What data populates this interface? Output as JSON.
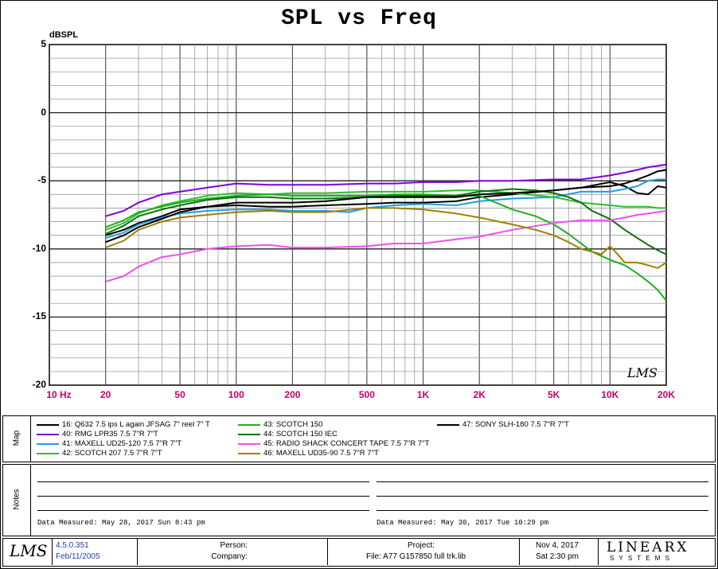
{
  "chart_data": {
    "type": "line",
    "title": "SPL vs Freq",
    "ylabel": "dBSPL",
    "xscale": "log",
    "xlim": [
      10,
      20000
    ],
    "ylim": [
      -20,
      5
    ],
    "yticks": [
      "5",
      "0",
      "-5",
      "-10",
      "-15",
      "-20"
    ],
    "xticks": [
      {
        "v": 10,
        "label": "10 Hz"
      },
      {
        "v": 20,
        "label": "20"
      },
      {
        "v": 50,
        "label": "50"
      },
      {
        "v": 100,
        "label": "100"
      },
      {
        "v": 200,
        "label": "200"
      },
      {
        "v": 500,
        "label": "500"
      },
      {
        "v": 1000,
        "label": "1K"
      },
      {
        "v": 2000,
        "label": "2K"
      },
      {
        "v": 5000,
        "label": "5K"
      },
      {
        "v": 10000,
        "label": "10K"
      },
      {
        "v": 20000,
        "label": "20K"
      }
    ],
    "watermark": "LMS",
    "grid": true,
    "series": [
      {
        "name": "16: Q632  7.5 ips   L again  JFSAG  7\" reel 7\" T",
        "color": "#000000",
        "x": [
          20,
          25,
          30,
          40,
          50,
          70,
          100,
          150,
          200,
          300,
          500,
          700,
          1000,
          1500,
          2000,
          3000,
          5000,
          7000,
          10000,
          12000,
          14000,
          16000,
          18000,
          20000
        ],
        "y": [
          -9.0,
          -8.6,
          -8.1,
          -7.6,
          -7.1,
          -6.9,
          -6.8,
          -6.9,
          -6.9,
          -6.8,
          -6.7,
          -6.6,
          -6.6,
          -6.5,
          -6.2,
          -6.0,
          -5.7,
          -5.5,
          -5.1,
          -5.4,
          -5.9,
          -6.0,
          -5.4,
          -5.5
        ]
      },
      {
        "name": "40: RMG LPR35  7.5 7\"R 7\"T",
        "color": "#7f00df",
        "x": [
          20,
          25,
          30,
          40,
          50,
          70,
          100,
          150,
          200,
          300,
          500,
          700,
          1000,
          1500,
          2000,
          3000,
          5000,
          7000,
          10000,
          12000,
          14000,
          16000,
          18000,
          20000
        ],
        "y": [
          -7.6,
          -7.2,
          -6.6,
          -6.0,
          -5.8,
          -5.5,
          -5.2,
          -5.3,
          -5.3,
          -5.3,
          -5.2,
          -5.2,
          -5.1,
          -5.1,
          -5.0,
          -5.0,
          -4.9,
          -4.9,
          -4.6,
          -4.4,
          -4.2,
          -4.0,
          -3.9,
          -3.8
        ]
      },
      {
        "name": "41: MAXELL UD25-120  7.5 7\"R 7\"T",
        "color": "#1f9fdf",
        "x": [
          20,
          25,
          30,
          40,
          50,
          70,
          100,
          150,
          200,
          300,
          400,
          500,
          700,
          1000,
          1500,
          2000,
          3000,
          5000,
          7000,
          10000,
          12000,
          14000,
          16000,
          18000,
          20000
        ],
        "y": [
          -9.2,
          -8.8,
          -8.2,
          -7.7,
          -7.4,
          -7.2,
          -7.1,
          -7.1,
          -7.2,
          -7.2,
          -7.3,
          -7.0,
          -6.8,
          -6.7,
          -6.8,
          -6.5,
          -6.3,
          -6.2,
          -5.8,
          -5.8,
          -5.6,
          -5.4,
          -5.0,
          -4.9,
          -4.9
        ]
      },
      {
        "name": "42: SCOTCH 207  7.5 7\"R 7\"T",
        "color": "#2fbf2f",
        "x": [
          20,
          25,
          30,
          40,
          50,
          70,
          100,
          150,
          200,
          300,
          500,
          700,
          1000,
          1500,
          2000,
          3000,
          5000,
          7000,
          10000,
          12000,
          14000,
          16000,
          18000,
          20000
        ],
        "y": [
          -8.6,
          -8.1,
          -7.4,
          -6.8,
          -6.5,
          -6.1,
          -5.9,
          -6.0,
          -5.9,
          -5.9,
          -5.8,
          -5.8,
          -5.8,
          -5.7,
          -5.7,
          -5.9,
          -6.2,
          -6.6,
          -6.8,
          -6.9,
          -6.9,
          -6.9,
          -7.0,
          -7.0
        ]
      },
      {
        "name": "43: SCOTCH 150",
        "color": "#1faf1f",
        "x": [
          20,
          25,
          30,
          40,
          50,
          70,
          100,
          150,
          200,
          300,
          500,
          700,
          1000,
          1500,
          2000,
          3000,
          4000,
          5000,
          6000,
          7000,
          8000,
          10000,
          12000,
          14000,
          16000,
          18000,
          20000
        ],
        "y": [
          -8.4,
          -7.9,
          -7.3,
          -6.9,
          -6.6,
          -6.3,
          -6.1,
          -6.0,
          -6.1,
          -6.1,
          -6.1,
          -6.0,
          -6.0,
          -6.1,
          -6.1,
          -7.1,
          -7.6,
          -8.2,
          -8.9,
          -9.6,
          -10.2,
          -10.8,
          -11.2,
          -11.8,
          -12.4,
          -13.0,
          -13.8
        ]
      },
      {
        "name": "44: SCOTCH 150  IEC",
        "color": "#0f6f0f",
        "x": [
          20,
          25,
          30,
          40,
          50,
          70,
          100,
          150,
          200,
          300,
          500,
          700,
          1000,
          1500,
          2000,
          3000,
          4000,
          5000,
          6000,
          7000,
          8000,
          10000,
          12000,
          14000,
          16000,
          18000,
          20000
        ],
        "y": [
          -8.9,
          -8.3,
          -7.6,
          -7.1,
          -6.8,
          -6.4,
          -6.2,
          -6.2,
          -6.3,
          -6.3,
          -6.2,
          -6.1,
          -6.1,
          -6.1,
          -5.8,
          -5.6,
          -5.7,
          -5.9,
          -6.2,
          -6.6,
          -7.2,
          -7.8,
          -8.6,
          -9.2,
          -9.7,
          -10.1,
          -10.4
        ]
      },
      {
        "name": "45: RADIO SHACK CONCERT TAPE  7.5 7\"R 7\"T",
        "color": "#ef4fef",
        "x": [
          20,
          25,
          30,
          40,
          50,
          70,
          100,
          150,
          200,
          300,
          500,
          700,
          1000,
          1500,
          2000,
          3000,
          5000,
          7000,
          10000,
          12000,
          14000,
          16000,
          18000,
          20000
        ],
        "y": [
          -12.4,
          -12.0,
          -11.3,
          -10.6,
          -10.4,
          -10.0,
          -9.8,
          -9.7,
          -9.9,
          -9.9,
          -9.8,
          -9.6,
          -9.6,
          -9.3,
          -9.1,
          -8.6,
          -8.1,
          -7.9,
          -7.9,
          -7.7,
          -7.5,
          -7.4,
          -7.3,
          -7.2
        ]
      },
      {
        "name": "46: MAXELL UD35-90  7.5 7\"R 7\"T",
        "color": "#a08000",
        "x": [
          20,
          25,
          30,
          40,
          50,
          70,
          100,
          150,
          200,
          300,
          500,
          700,
          1000,
          1500,
          2000,
          3000,
          4000,
          5000,
          6000,
          7000,
          8000,
          9000,
          10000,
          11000,
          12000,
          14000,
          16000,
          18000,
          20000
        ],
        "y": [
          -9.9,
          -9.4,
          -8.6,
          -8.0,
          -7.7,
          -7.5,
          -7.3,
          -7.2,
          -7.3,
          -7.3,
          -7.0,
          -7.0,
          -7.1,
          -7.4,
          -7.7,
          -8.2,
          -8.6,
          -9.0,
          -9.5,
          -10.0,
          -10.2,
          -10.4,
          -9.8,
          -10.4,
          -11.0,
          -11.0,
          -11.2,
          -11.4,
          -11.0
        ]
      },
      {
        "name": "47: SONY SLH-180  7.5 7\"R 7\"T",
        "color": "#000000",
        "x": [
          20,
          25,
          30,
          40,
          50,
          70,
          100,
          150,
          200,
          300,
          500,
          700,
          1000,
          1500,
          2000,
          3000,
          5000,
          7000,
          10000,
          12000,
          14000,
          16000,
          18000,
          20000
        ],
        "y": [
          -9.5,
          -9.0,
          -8.4,
          -7.8,
          -7.3,
          -6.9,
          -6.6,
          -6.6,
          -6.6,
          -6.5,
          -6.2,
          -6.2,
          -6.2,
          -6.2,
          -6.0,
          -5.9,
          -5.7,
          -5.5,
          -5.4,
          -5.2,
          -4.9,
          -4.6,
          -4.3,
          -4.2
        ]
      }
    ]
  },
  "map_label": "Map",
  "notes_label": "Notes",
  "notes": {
    "left_date": "Data Measured: May 28, 2017   Sun  8:43 pm",
    "right_date": "Data Measured: May 30, 2017   Tue 10:29 pm"
  },
  "footer": {
    "logo": "LMS",
    "version": "4.5.0.351",
    "version_date": "Feb/11/2005",
    "person_label": "Person:",
    "company_label": "Company:",
    "project_label": "Project:",
    "file_label": "File: A77 G157850 full trk.lib",
    "date": "Nov  4, 2017",
    "time": "Sat  2:30 pm",
    "brand": "LINEARX",
    "brand_sub": "S Y S T E M S"
  }
}
